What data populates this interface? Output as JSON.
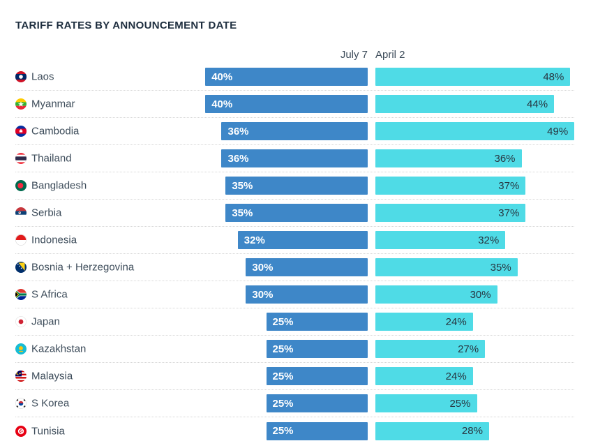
{
  "title": "TARIFF RATES BY ANNOUNCEMENT DATE",
  "columns": {
    "left": "July 7",
    "right": "April 2"
  },
  "colors": {
    "july7_bar": "#3e87c8",
    "april2_bar": "#4fdbe6",
    "title_text": "#1d2d3e",
    "label_text": "#3d4c5a",
    "separator": "#d6d6d6"
  },
  "chart_data": {
    "type": "bar",
    "orientation": "horizontal",
    "title": "TARIFF RATES BY ANNOUNCEMENT DATE",
    "categories": [
      "Laos",
      "Myanmar",
      "Cambodia",
      "Thailand",
      "Bangladesh",
      "Serbia",
      "Indonesia",
      "Bosnia + Herzegovina",
      "S Africa",
      "Japan",
      "Kazakhstan",
      "Malaysia",
      "S Korea",
      "Tunisia"
    ],
    "series": [
      {
        "name": "July 7",
        "color": "#3e87c8",
        "values": [
          40,
          40,
          36,
          36,
          35,
          35,
          32,
          30,
          30,
          25,
          25,
          25,
          25,
          25
        ]
      },
      {
        "name": "April 2",
        "color": "#4fdbe6",
        "values": [
          48,
          44,
          49,
          36,
          37,
          37,
          32,
          35,
          30,
          24,
          27,
          24,
          25,
          28
        ]
      }
    ],
    "value_format": "percent",
    "value_labels_shown": true,
    "legend_position": "top",
    "xlim": [
      0,
      49
    ]
  },
  "rows": [
    {
      "country": "Laos",
      "flag_icon": "flag-laos-icon",
      "flag": "laos",
      "july7": 40,
      "april2": 48,
      "july7_label": "40%",
      "april2_label": "48%"
    },
    {
      "country": "Myanmar",
      "flag_icon": "flag-myanmar-icon",
      "flag": "myanmar",
      "july7": 40,
      "april2": 44,
      "july7_label": "40%",
      "april2_label": "44%"
    },
    {
      "country": "Cambodia",
      "flag_icon": "flag-cambodia-icon",
      "flag": "cambodia",
      "july7": 36,
      "april2": 49,
      "july7_label": "36%",
      "april2_label": "49%"
    },
    {
      "country": "Thailand",
      "flag_icon": "flag-thailand-icon",
      "flag": "thailand",
      "july7": 36,
      "april2": 36,
      "july7_label": "36%",
      "april2_label": "36%"
    },
    {
      "country": "Bangladesh",
      "flag_icon": "flag-bangladesh-icon",
      "flag": "bangladesh",
      "july7": 35,
      "april2": 37,
      "july7_label": "35%",
      "april2_label": "37%"
    },
    {
      "country": "Serbia",
      "flag_icon": "flag-serbia-icon",
      "flag": "serbia",
      "july7": 35,
      "april2": 37,
      "july7_label": "35%",
      "april2_label": "37%"
    },
    {
      "country": "Indonesia",
      "flag_icon": "flag-indonesia-icon",
      "flag": "indonesia",
      "july7": 32,
      "april2": 32,
      "july7_label": "32%",
      "april2_label": "32%"
    },
    {
      "country": "Bosnia + Herzegovina",
      "flag_icon": "flag-bosnia-icon",
      "flag": "bosnia",
      "july7": 30,
      "april2": 35,
      "july7_label": "30%",
      "april2_label": "35%"
    },
    {
      "country": "S Africa",
      "flag_icon": "flag-s-africa-icon",
      "flag": "safrica",
      "july7": 30,
      "april2": 30,
      "july7_label": "30%",
      "april2_label": "30%"
    },
    {
      "country": "Japan",
      "flag_icon": "flag-japan-icon",
      "flag": "japan",
      "july7": 25,
      "april2": 24,
      "july7_label": "25%",
      "april2_label": "24%"
    },
    {
      "country": "Kazakhstan",
      "flag_icon": "flag-kazakhstan-icon",
      "flag": "kazakhstan",
      "july7": 25,
      "april2": 27,
      "july7_label": "25%",
      "april2_label": "27%"
    },
    {
      "country": "Malaysia",
      "flag_icon": "flag-malaysia-icon",
      "flag": "malaysia",
      "july7": 25,
      "april2": 24,
      "july7_label": "25%",
      "april2_label": "24%"
    },
    {
      "country": "S Korea",
      "flag_icon": "flag-s-korea-icon",
      "flag": "skorea",
      "july7": 25,
      "april2": 25,
      "july7_label": "25%",
      "april2_label": "25%"
    },
    {
      "country": "Tunisia",
      "flag_icon": "flag-tunisia-icon",
      "flag": "tunisia",
      "july7": 25,
      "april2": 28,
      "july7_label": "25%",
      "april2_label": "28%"
    }
  ]
}
